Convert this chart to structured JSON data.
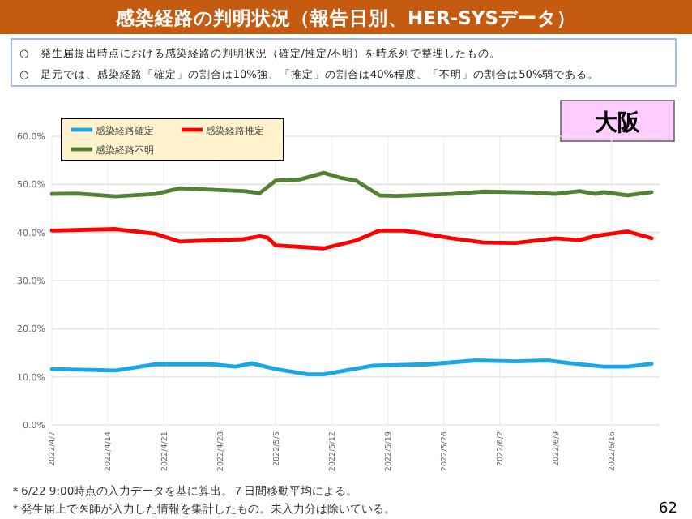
{
  "chart_data": {
    "type": "line",
    "title": "感染経路の判明状況（報告日別、HER-SYSデータ）",
    "annotations": [
      "○　発生届提出時点における感染経路の判明状況（確定/推定/不明）を時系列で整理したもの。",
      "○　足元では、感染経路「確定」の割合は10%強、「推定」の割合は40%程度、「不明」の割合は50%弱である。",
      "大阪",
      "＊6/22 9:00時点の入力データを基に算出。７日間移動平均による。",
      "＊発生届上で医師が入力した情報を集計したもの。未入力分は除いている。",
      "62"
    ],
    "series": [
      {
        "name": "感染経路確定",
        "color": "#1aa7e8",
        "x": [
          "2022-04-07",
          "2022-04-15",
          "2022-04-20",
          "2022-04-27",
          "2022-04-30",
          "2022-05-02",
          "2022-05-05",
          "2022-05-09",
          "2022-05-11",
          "2022-05-13",
          "2022-05-17",
          "2022-05-24",
          "2022-05-30",
          "2022-06-04",
          "2022-06-08",
          "2022-06-11",
          "2022-06-15",
          "2022-06-18",
          "2022-06-21"
        ],
        "values": [
          11.6,
          11.3,
          12.6,
          12.6,
          12.1,
          12.8,
          11.6,
          10.5,
          10.5,
          11.1,
          12.3,
          12.6,
          13.4,
          13.2,
          13.4,
          12.8,
          12.1,
          12.1,
          12.7
        ]
      },
      {
        "name": "感染経路推定",
        "color": "#ff0000",
        "x": [
          "2022-04-07",
          "2022-04-15",
          "2022-04-20",
          "2022-04-23",
          "2022-05-01",
          "2022-05-03",
          "2022-05-04",
          "2022-05-05",
          "2022-05-11",
          "2022-05-15",
          "2022-05-18",
          "2022-05-21",
          "2022-05-23",
          "2022-05-27",
          "2022-05-31",
          "2022-06-04",
          "2022-06-09",
          "2022-06-12",
          "2022-06-14",
          "2022-06-18",
          "2022-06-21"
        ],
        "values": [
          40.4,
          40.7,
          39.7,
          38.1,
          38.6,
          39.2,
          38.9,
          37.3,
          36.7,
          38.3,
          40.4,
          40.4,
          39.9,
          38.8,
          37.9,
          37.8,
          38.8,
          38.4,
          39.3,
          40.2,
          38.8
        ]
      },
      {
        "name": "感染経路不明",
        "color": "#548235",
        "x": [
          "2022-04-07",
          "2022-04-10",
          "2022-04-15",
          "2022-04-20",
          "2022-04-23",
          "2022-05-01",
          "2022-05-03",
          "2022-05-05",
          "2022-05-08",
          "2022-05-11",
          "2022-05-13",
          "2022-05-15",
          "2022-05-18",
          "2022-05-20",
          "2022-05-27",
          "2022-05-31",
          "2022-06-06",
          "2022-06-09",
          "2022-06-12",
          "2022-06-14",
          "2022-06-15",
          "2022-06-18",
          "2022-06-21"
        ],
        "values": [
          48.0,
          48.1,
          47.5,
          48.0,
          49.2,
          48.6,
          48.2,
          50.8,
          51.0,
          52.4,
          51.4,
          50.8,
          47.7,
          47.6,
          48.0,
          48.5,
          48.3,
          48.0,
          48.6,
          48.0,
          48.4,
          47.7,
          48.4
        ]
      }
    ],
    "xlim": [
      "2022-04-07",
      "2022-06-22"
    ],
    "xticks": [
      {
        "value": "2022-04-07",
        "label": "2022/4/7"
      },
      {
        "value": "2022-04-14",
        "label": "2022/4/14"
      },
      {
        "value": "2022-04-21",
        "label": "2022/4/21"
      },
      {
        "value": "2022-04-28",
        "label": "2022/4/28"
      },
      {
        "value": "2022-05-05",
        "label": "2022/5/5"
      },
      {
        "value": "2022-05-12",
        "label": "2022/5/12"
      },
      {
        "value": "2022-05-19",
        "label": "2022/5/19"
      },
      {
        "value": "2022-05-26",
        "label": "2022/5/26"
      },
      {
        "value": "2022-06-02",
        "label": "2022/6/2"
      },
      {
        "value": "2022-06-09",
        "label": "2022/6/9"
      },
      {
        "value": "2022-06-16",
        "label": "2022/6/16"
      }
    ],
    "ylim": [
      0,
      60
    ],
    "yticks": [
      {
        "value": 0,
        "label": "0.0%"
      },
      {
        "value": 10,
        "label": "10.0%"
      },
      {
        "value": 20,
        "label": "20.0%"
      },
      {
        "value": 30,
        "label": "30.0%"
      },
      {
        "value": 40,
        "label": "40.0%"
      },
      {
        "value": 50,
        "label": "50.0%"
      },
      {
        "value": 60,
        "label": "60.0%"
      }
    ],
    "grid": true,
    "legend": "top left",
    "marker": "none",
    "line_style": "solid"
  }
}
